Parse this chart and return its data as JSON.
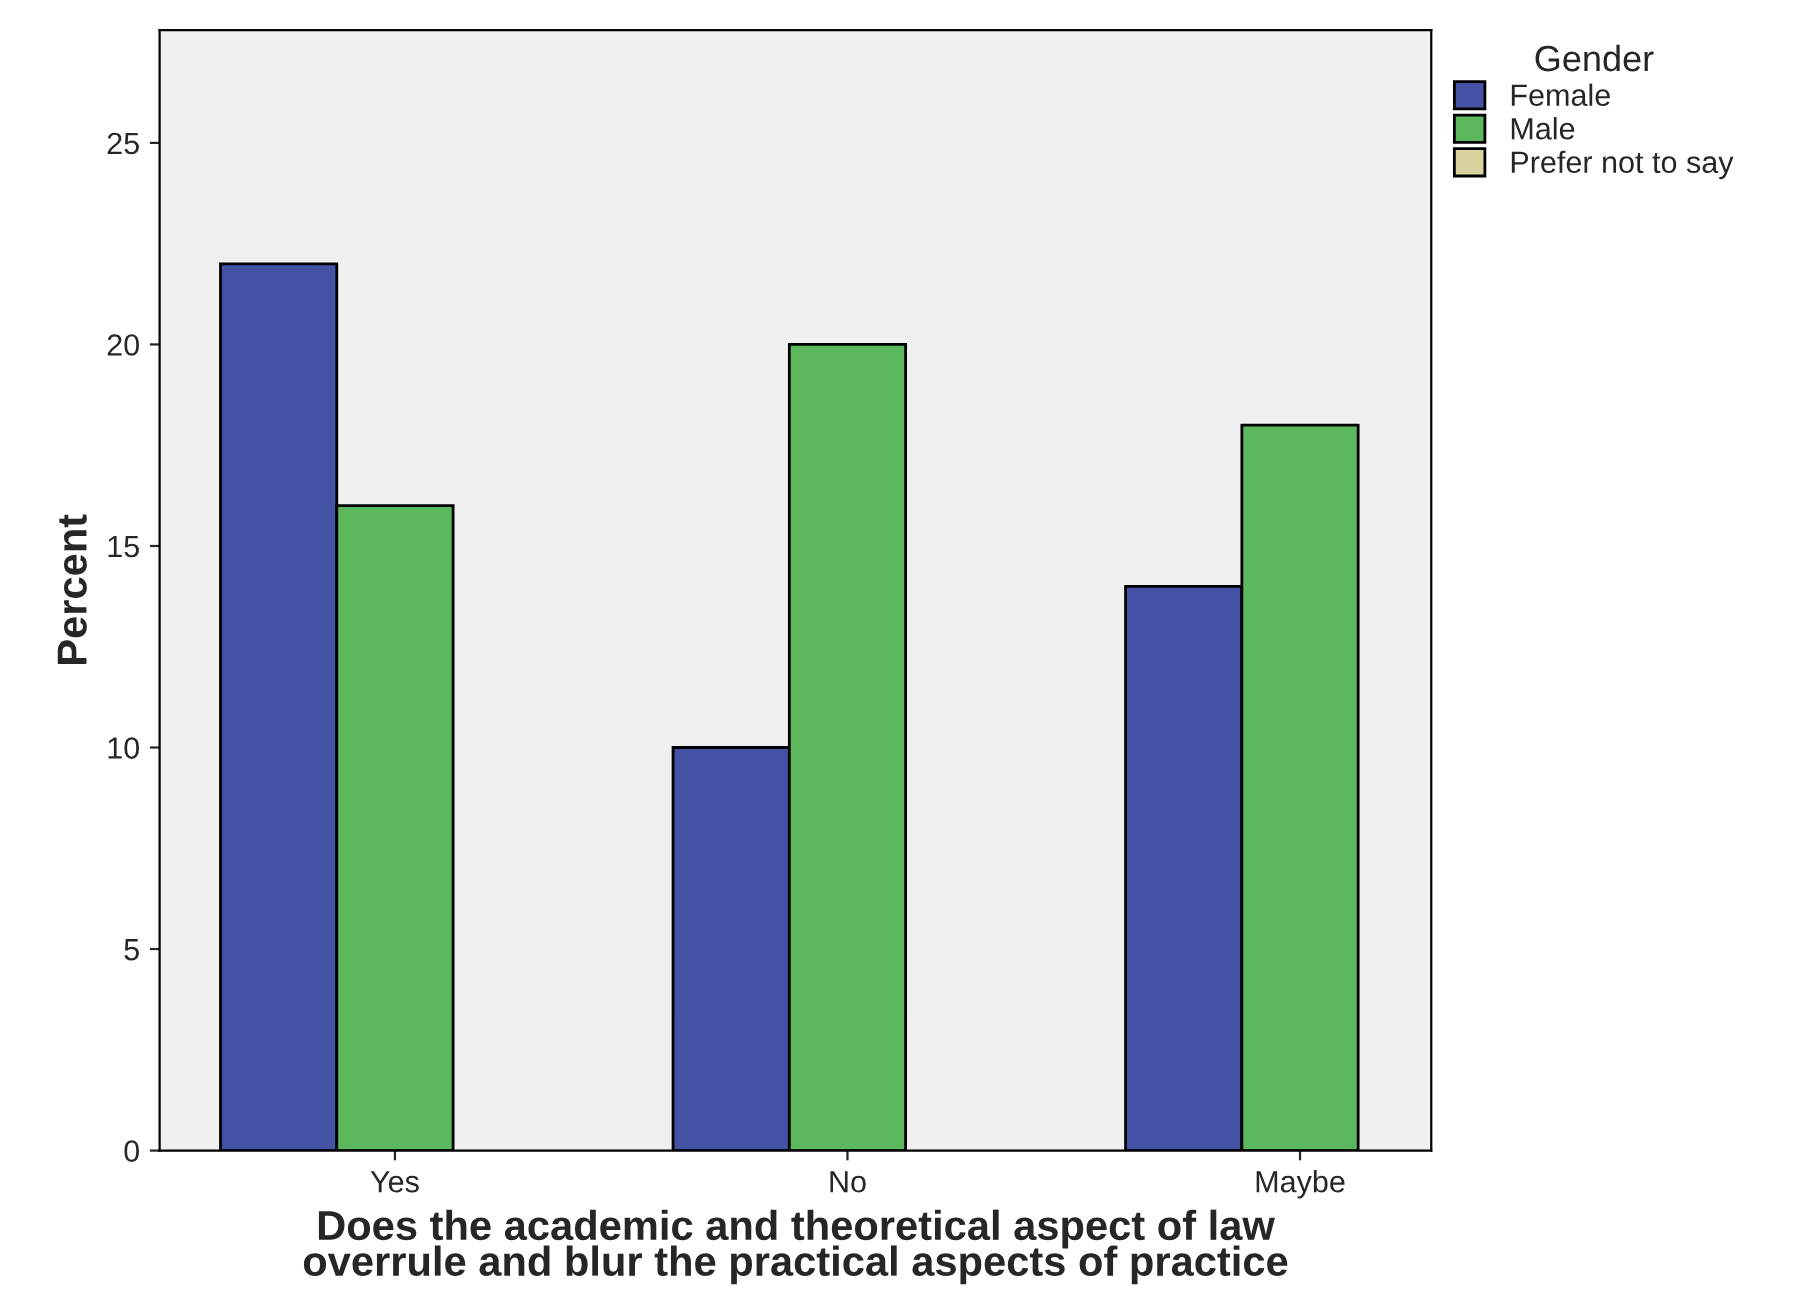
{
  "chart_data": {
    "type": "bar",
    "xlabel": "Does the academic and theoretical aspect of law\noverrule and blur the practical aspects of practice",
    "ylabel": "Percent",
    "categories": [
      "Yes",
      "No",
      "Maybe"
    ],
    "series": [
      {
        "name": "Female",
        "color": "#4352a5",
        "values": [
          22,
          10,
          14
        ]
      },
      {
        "name": "Male",
        "color": "#5cb85c",
        "values": [
          16,
          20,
          18
        ]
      },
      {
        "name": "Prefer not to say",
        "color": "#d8d2a0",
        "values": [
          null,
          null,
          null
        ]
      }
    ],
    "legend_title": "Gender",
    "legend": "top right",
    "ylim": [
      0,
      27.8
    ],
    "yticks": [
      0,
      5,
      10,
      15,
      20,
      25
    ],
    "grid": false
  }
}
